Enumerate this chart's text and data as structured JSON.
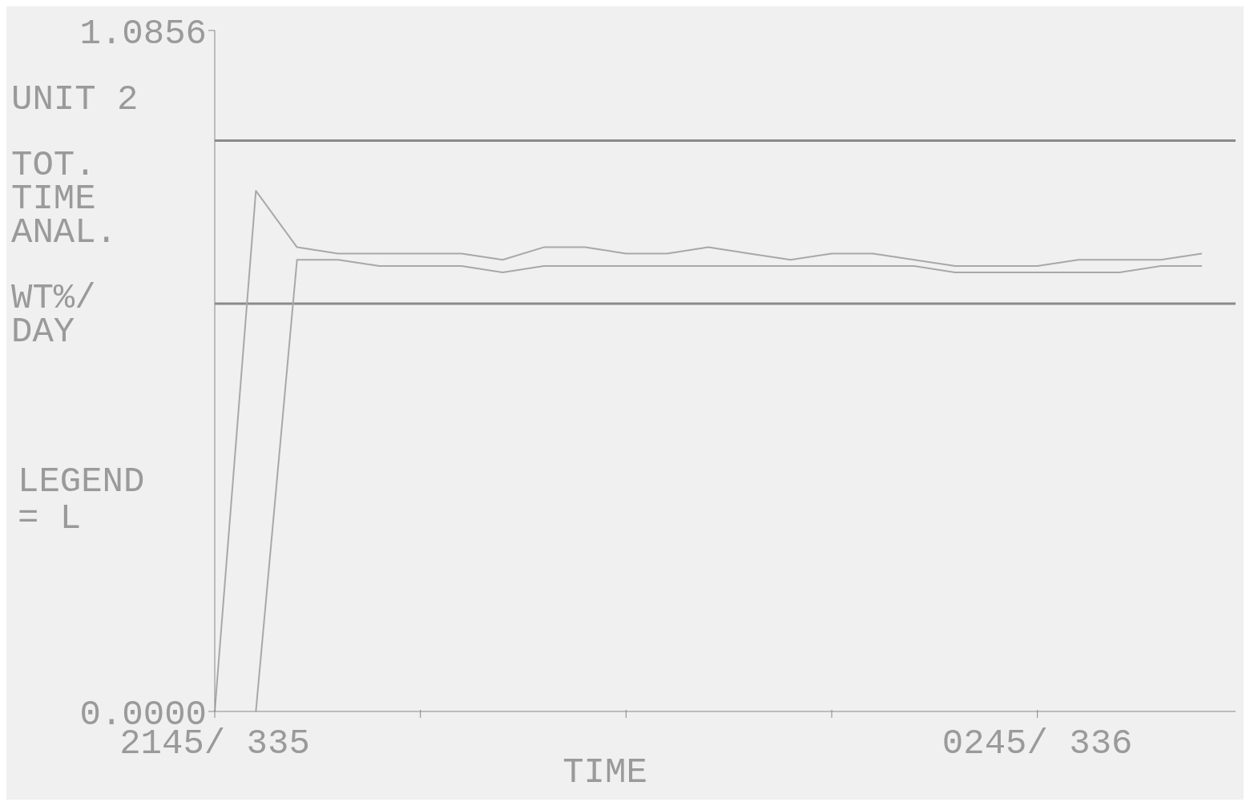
{
  "chart_data": {
    "type": "line",
    "ylabel": "UNIT 2 TOT. TIME ANAL. WT%/ DAY",
    "xlabel": "TIME",
    "annotations": [
      "LEGEND = L"
    ],
    "categories": [
      "2145/ 335",
      null,
      null,
      null,
      null,
      null,
      null,
      null,
      null,
      null,
      null,
      null,
      null,
      null,
      null,
      null,
      null,
      null,
      null,
      null,
      "0245/ 336",
      null,
      null,
      null,
      null
    ],
    "ylim": [
      0,
      1.0856
    ],
    "yticks": [
      {
        "value": 0,
        "label": "0.0000"
      },
      1.0856
    ],
    "marker": "none",
    "ref_lines": [
      {
        "axis": "y",
        "value": 0.91,
        "color": "#8a8a8a"
      },
      {
        "axis": "y",
        "value": 0.65,
        "color": "#8a8a8a"
      }
    ],
    "series": [
      {
        "color": "#a8a8a8",
        "values": [
          0,
          0.83,
          0.74,
          0.73,
          0.73,
          0.73,
          0.73,
          0.72,
          0.74,
          0.74,
          0.73,
          0.73,
          0.74,
          0.73,
          0.72,
          0.73,
          0.73,
          0.72,
          0.71,
          0.71,
          0.71,
          0.72,
          0.72,
          0.72,
          0.73
        ]
      },
      {
        "color": "#a8a8a8",
        "values": [
          null,
          0,
          0.72,
          0.72,
          0.71,
          0.71,
          0.71,
          0.7,
          0.71,
          0.71,
          0.71,
          0.71,
          0.71,
          0.71,
          0.71,
          0.71,
          0.71,
          0.71,
          0.7,
          0.7,
          0.7,
          0.7,
          0.7,
          0.71,
          0.71
        ]
      }
    ]
  }
}
